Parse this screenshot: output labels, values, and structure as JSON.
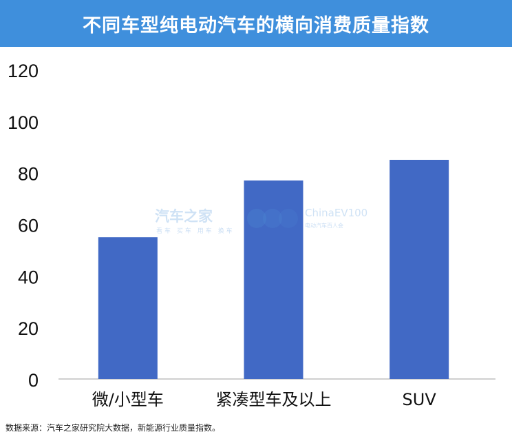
{
  "header": {
    "title": "不同车型纯电动汽车的横向消费质量指数"
  },
  "source": "数据来源：汽车之家研究院大数据，新能源行业质量指数。",
  "watermark": {
    "brand": "汽车之家",
    "tags": "看车 买车 用车 换车",
    "ev": "ChinaEV100",
    "ev_sub": "电动汽车百人会"
  },
  "colors": {
    "bar": "#4169c5",
    "header": "#3f8fdc",
    "axis": "#bfbfbf"
  },
  "chart_data": {
    "type": "bar",
    "categories": [
      "微/小型车",
      "紧凑型车及以上",
      "SUV"
    ],
    "values": [
      55,
      77,
      85
    ],
    "ylim": [
      0,
      120
    ],
    "yticks": [
      "0",
      "20",
      "40",
      "60",
      "80",
      "100",
      "120"
    ],
    "title": "不同车型纯电动汽车的横向消费质量指数",
    "xlabel": "",
    "ylabel": "",
    "grid": false
  }
}
